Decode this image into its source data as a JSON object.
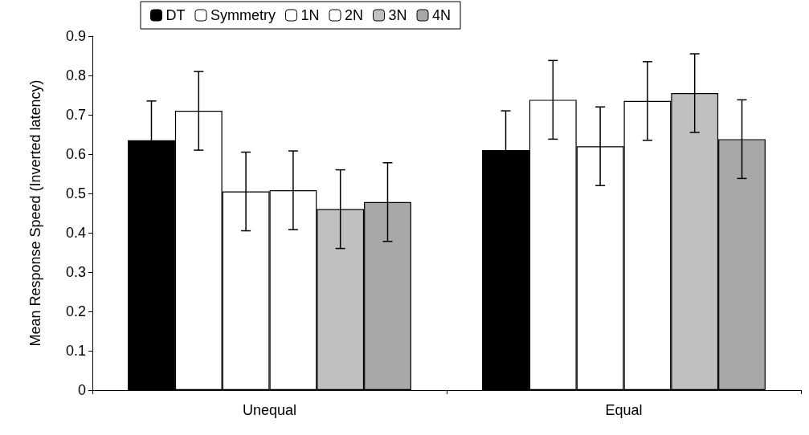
{
  "chart_data": {
    "type": "bar",
    "ylabel": "Mean Response Speed (Inverted latency)",
    "categories": [
      "Unequal",
      "Equal"
    ],
    "series": [
      {
        "name": "DT",
        "color": "#000000",
        "values": [
          0.635,
          0.61
        ],
        "errors": [
          0.1,
          0.1
        ]
      },
      {
        "name": "Symmetry",
        "color": "#ffffff",
        "values": [
          0.71,
          0.738
        ],
        "errors": [
          0.1,
          0.1
        ]
      },
      {
        "name": "1N",
        "color": "#ffffff",
        "values": [
          0.505,
          0.62
        ],
        "errors": [
          0.1,
          0.1
        ]
      },
      {
        "name": "2N",
        "color": "#ffffff",
        "values": [
          0.508,
          0.735
        ],
        "errors": [
          0.1,
          0.1
        ]
      },
      {
        "name": "3N",
        "color": "#c0c0c0",
        "values": [
          0.46,
          0.755
        ],
        "errors": [
          0.1,
          0.1
        ]
      },
      {
        "name": "4N",
        "color": "#a8a8a8",
        "values": [
          0.478,
          0.638
        ],
        "errors": [
          0.1,
          0.1
        ]
      }
    ],
    "ylim": [
      0,
      0.9
    ],
    "yticks": [
      0,
      0.1,
      0.2,
      0.3,
      0.4,
      0.5,
      0.6,
      0.7,
      0.8,
      0.9
    ],
    "grid": false,
    "legend": "top"
  }
}
